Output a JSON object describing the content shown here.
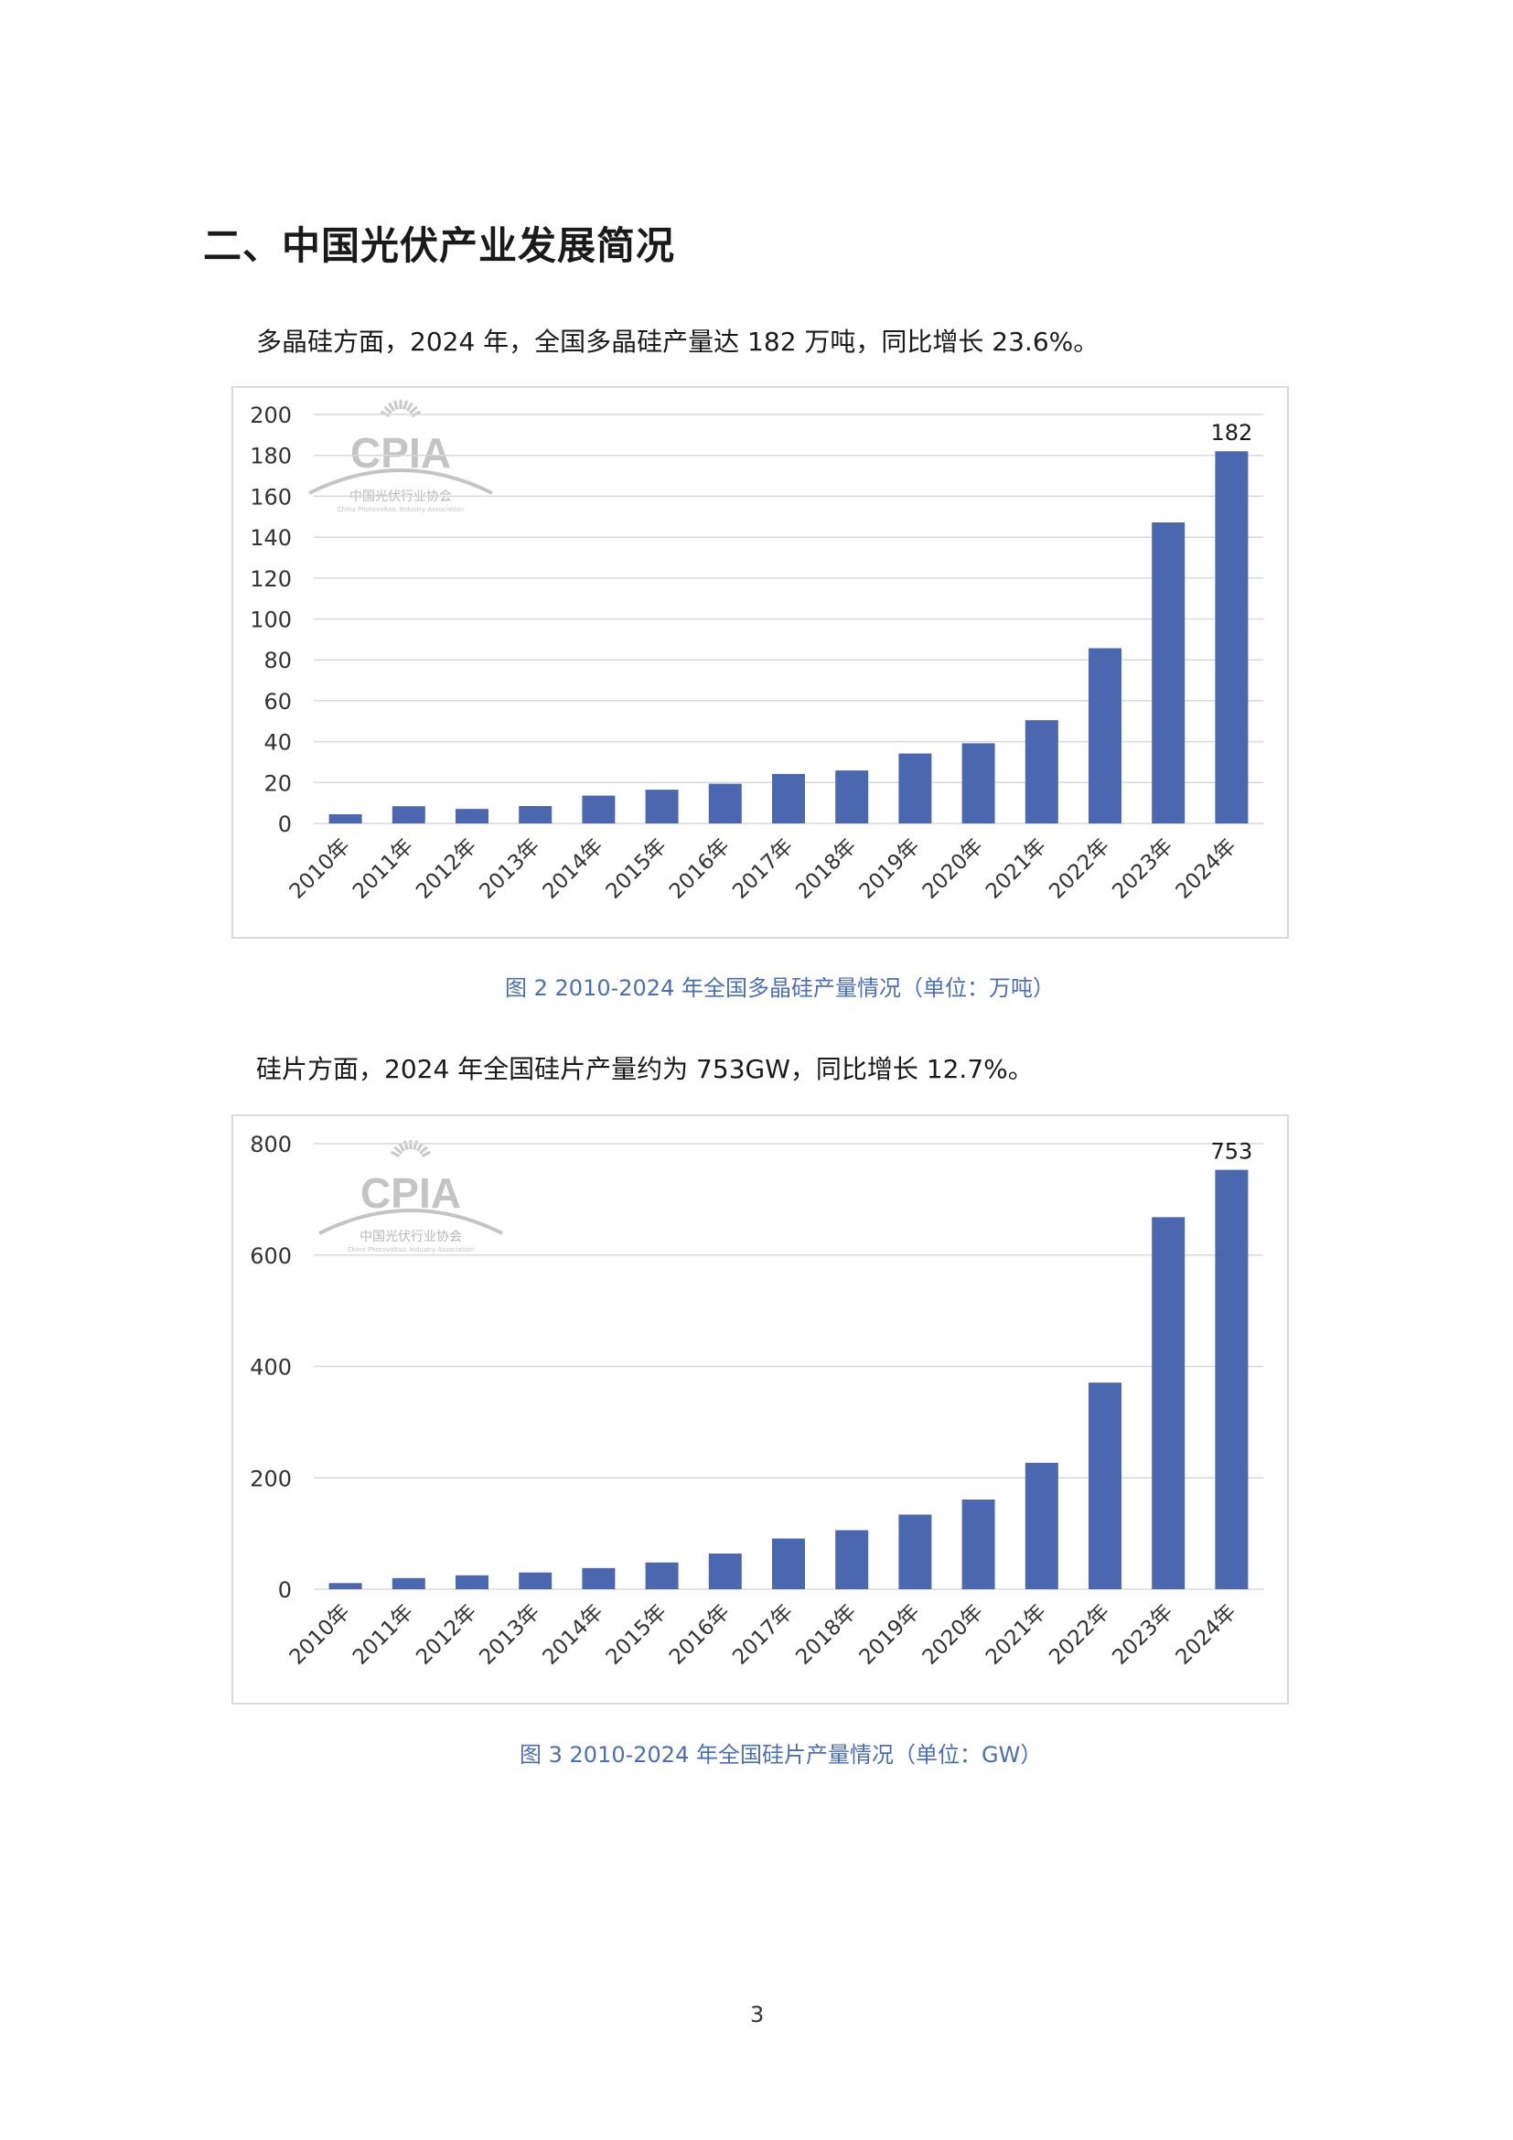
{
  "section_title": "二、中国光伏产业发展简况",
  "para1": "多晶硅方面，2024 年，全国多晶硅产量达 182 万吨，同比增长 23.6%。",
  "para2": "硅片方面，2024 年全国硅片产量约为 753GW，同比增长 12.7%。",
  "caption1": "图 2   2010-2024 年全国多晶硅产量情况（单位：万吨）",
  "caption2": "图 3   2010-2024 年全国硅片产量情况（单位：GW）",
  "page_number": "3",
  "watermark": {
    "logo_text": "CPIA",
    "cn_name": "中国光伏行业协会",
    "en_name": "China Photovoltaic Industry Association"
  },
  "bar_color": "#4a67b0",
  "chart_data": [
    {
      "type": "bar",
      "categories": [
        "2010年",
        "2011年",
        "2012年",
        "2013年",
        "2014年",
        "2015年",
        "2016年",
        "2017年",
        "2018年",
        "2019年",
        "2020年",
        "2021年",
        "2022年",
        "2023年",
        "2024年"
      ],
      "values": [
        4.5,
        8.4,
        7.1,
        8.5,
        13.6,
        16.5,
        19.4,
        24.2,
        25.9,
        34.2,
        39.2,
        50.5,
        85.7,
        147.2,
        182
      ],
      "data_labels": [
        {
          "index": 14,
          "text": "182"
        }
      ],
      "yticks": [
        0,
        20,
        40,
        60,
        80,
        100,
        120,
        140,
        160,
        180,
        200
      ],
      "ylim": [
        0,
        200
      ],
      "grid": true,
      "legend": "none"
    },
    {
      "type": "bar",
      "categories": [
        "2010年",
        "2011年",
        "2012年",
        "2013年",
        "2014年",
        "2015年",
        "2016年",
        "2017年",
        "2018年",
        "2019年",
        "2020年",
        "2021年",
        "2022年",
        "2023年",
        "2024年"
      ],
      "values": [
        11,
        20,
        25,
        30,
        38,
        48,
        64,
        91,
        106,
        134,
        161,
        227,
        371,
        668,
        753
      ],
      "data_labels": [
        {
          "index": 14,
          "text": "753"
        }
      ],
      "yticks": [
        0,
        200,
        400,
        600,
        800
      ],
      "ylim": [
        0,
        800
      ],
      "grid": true,
      "legend": "none"
    }
  ]
}
